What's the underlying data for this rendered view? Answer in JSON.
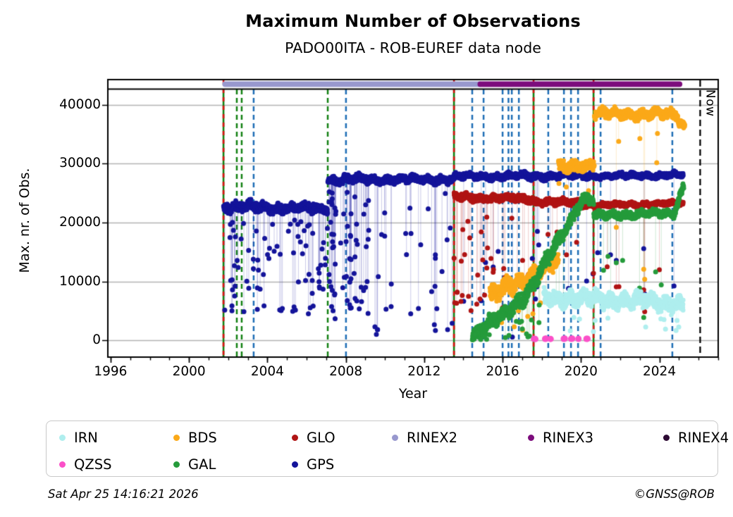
{
  "footer": {
    "timestamp": "Sat Apr 25 14:16:21 2026",
    "credit": "©GNSS@ROB"
  },
  "chart_data": {
    "type": "scatter",
    "title": "Maximum Number of Observations",
    "subtitle": "PADO00ITA - ROB-EUREF data node",
    "xlabel": "Year",
    "ylabel": "Max. nr. of Obs.",
    "axes": {
      "xlim": [
        1995.86,
        2027.0
      ],
      "ylim": [
        -2810,
        44270
      ],
      "xticks": [
        1996,
        2000,
        2004,
        2008,
        2012,
        2016,
        2020,
        2024
      ],
      "xminor_from": 1996,
      "xminor_to": 2027,
      "yticks": [
        0,
        10000,
        20000,
        30000,
        40000
      ],
      "grid": "horizontal",
      "grid_color": "#B3B3B3"
    },
    "now": {
      "x": 2026.08,
      "label": "Now"
    },
    "rinex_bars": [
      {
        "name": "RINEX2",
        "start": 2001.7,
        "end": 2014.95,
        "color": "#9898CE"
      },
      {
        "name": "RINEX3",
        "start": 2014.72,
        "end": 2025.17,
        "color": "#7C0C7C"
      }
    ],
    "event_lines": {
      "green_red_solid": [
        2001.76,
        2013.52,
        2017.58,
        2020.64
      ],
      "green_dashed": [
        2002.44,
        2002.69,
        2007.08
      ],
      "blue_dashed": [
        2003.3,
        2008.01,
        2014.45,
        2015.03,
        2016.0,
        2016.3,
        2016.47,
        2016.83,
        2018.33,
        2019.13,
        2019.49,
        2019.85,
        2021.0,
        2024.66
      ],
      "colors": {
        "green": "#128012",
        "red": "#D90F0F",
        "blue": "#1D6DB5",
        "now": "#000000"
      }
    },
    "legend": [
      {
        "label": "IRN",
        "color": "#AFEEEE"
      },
      {
        "label": "BDS",
        "color": "#FBA919"
      },
      {
        "label": "GLO",
        "color": "#B01414"
      },
      {
        "label": "RINEX2",
        "color": "#9898CE"
      },
      {
        "label": "RINEX3",
        "color": "#7C0C7C"
      },
      {
        "label": "RINEX4",
        "color": "#2D0A33"
      },
      {
        "label": "QZSS",
        "color": "#FB50C8"
      },
      {
        "label": "GAL",
        "color": "#259B3B"
      },
      {
        "label": "GPS",
        "color": "#14149A"
      }
    ],
    "series": [
      {
        "name": "GPS",
        "color": "#14149A",
        "segments": [
          {
            "x0": 2001.76,
            "x1": 2007.08,
            "v0": 22700,
            "v1": 22400,
            "spread": 900,
            "out_n": 80,
            "out_lo": 4500,
            "out_hi": 20500
          },
          {
            "x0": 2007.08,
            "x1": 2009.2,
            "v0": 27300,
            "v1": 27400,
            "spread": 800,
            "out_n": 65,
            "out_lo": 2000,
            "out_hi": 25800
          },
          {
            "x0": 2009.2,
            "x1": 2013.52,
            "v0": 27300,
            "v1": 27400,
            "spread": 700,
            "out_n": 32,
            "out_lo": 500,
            "out_hi": 25800
          },
          {
            "x0": 2013.52,
            "x1": 2020.65,
            "v0": 27800,
            "v1": 28000,
            "spread": 600,
            "out_n": 14,
            "out_lo": 6000,
            "out_hi": 21000
          },
          {
            "x0": 2020.65,
            "x1": 2025.22,
            "v0": 27900,
            "v1": 28100,
            "spread": 500,
            "out_n": 3,
            "out_lo": 7500,
            "out_hi": 16000
          }
        ],
        "extra": [
          [
            2021.8,
            13600,
            27950
          ],
          [
            2023.2,
            15600,
            27980
          ],
          [
            2023.25,
            7900,
            27980
          ],
          [
            2016.5,
            600,
            27900
          ]
        ]
      },
      {
        "name": "GLO",
        "color": "#B01414",
        "segments": [
          {
            "x0": 2013.52,
            "x1": 2017.58,
            "v0": 24400,
            "v1": 24000,
            "spread": 650,
            "out_n": 34,
            "out_lo": 5000,
            "out_hi": 21000
          },
          {
            "x0": 2017.58,
            "x1": 2020.65,
            "v0": 23600,
            "v1": 23200,
            "spread": 600,
            "out_n": 6,
            "out_lo": 9000,
            "out_hi": 19000
          },
          {
            "x0": 2020.65,
            "x1": 2025.22,
            "v0": 22900,
            "v1": 23300,
            "spread": 450,
            "out_n": 3,
            "out_lo": 4500,
            "out_hi": 15000
          }
        ],
        "extra": [
          [
            2021.8,
            9100,
            23050
          ],
          [
            2023.2,
            8600,
            23100
          ],
          [
            2023.25,
            4900,
            23100
          ]
        ]
      },
      {
        "name": "BDS",
        "color": "#FBA919",
        "segments": [
          {
            "x0": 2015.35,
            "x1": 2017.58,
            "v0": 7500,
            "v1": 11300,
            "spread": 1600,
            "floor": 300,
            "out_n": 8,
            "out_lo": 1500,
            "out_hi": 6000
          },
          {
            "x0": 2017.58,
            "x1": 2018.85,
            "v0": 11500,
            "v1": 13300,
            "spread": 1300,
            "out_n": 2,
            "out_lo": 6000,
            "out_hi": 9000
          },
          {
            "x0": 2018.85,
            "x1": 2020.68,
            "v0": 29400,
            "v1": 29900,
            "spread": 1000,
            "out_n": 3,
            "out_lo": 24500,
            "out_hi": 27000
          },
          {
            "x0": 2020.68,
            "x1": 2024.95,
            "v0": 38500,
            "v1": 38300,
            "spread": 900,
            "out_n": 4,
            "out_lo": 27000,
            "out_hi": 35500
          },
          {
            "x0": 2024.95,
            "x1": 2025.3,
            "v0": 37300,
            "v1": 36200,
            "spread": 800
          }
        ],
        "extra": [
          [
            2021.8,
            19200,
            38450
          ],
          [
            2023.2,
            12100,
            38400
          ],
          [
            2023.25,
            10400,
            38400
          ]
        ]
      },
      {
        "name": "GAL",
        "color": "#259B3B",
        "segments": [
          {
            "x0": 2014.45,
            "x1": 2016.0,
            "v0": 600,
            "v1": 4200,
            "spread": 1400,
            "floor": 60,
            "out_n": 6,
            "out_lo": 100,
            "out_hi": 1500
          },
          {
            "x0": 2016.0,
            "x1": 2017.58,
            "v0": 4200,
            "v1": 9200,
            "spread": 1300,
            "floor": 60,
            "out_n": 10,
            "out_lo": 300,
            "out_hi": 4000
          },
          {
            "x0": 2017.58,
            "x1": 2019.13,
            "v0": 9500,
            "v1": 18500,
            "spread": 1400,
            "out_n": 5,
            "out_lo": 3000,
            "out_hi": 8000
          },
          {
            "x0": 2019.13,
            "x1": 2020.1,
            "v0": 18500,
            "v1": 24300,
            "spread": 1100
          },
          {
            "x0": 2020.1,
            "x1": 2020.65,
            "v0": 24000,
            "v1": 23600,
            "spread": 900
          },
          {
            "x0": 2020.65,
            "x1": 2024.75,
            "v0": 21200,
            "v1": 21600,
            "spread": 650,
            "out_n": 7,
            "out_lo": 2500,
            "out_hi": 18000
          },
          {
            "x0": 2024.75,
            "x1": 2025.25,
            "v0": 22000,
            "v1": 26300,
            "spread": 800
          }
        ],
        "extra": [
          [
            2021.8,
            13200,
            21300
          ],
          [
            2023.2,
            3900,
            21350
          ]
        ]
      },
      {
        "name": "IRN",
        "color": "#AFEEEE",
        "segments": [
          {
            "x0": 2018.1,
            "x1": 2025.22,
            "v0": 7400,
            "v1": 6300,
            "spread": 1400,
            "out_n": 10,
            "out_lo": 1500,
            "out_hi": 4500
          }
        ],
        "extra": [
          [
            2023.3,
            2300,
            6700
          ],
          [
            2024.85,
            1700,
            6400
          ],
          [
            2024.9,
            3400,
            6400
          ]
        ]
      },
      {
        "name": "QZSS",
        "color": "#FB50C8",
        "points": [
          [
            2017.6,
            300
          ],
          [
            2017.67,
            260
          ],
          [
            2018.17,
            300
          ],
          [
            2018.22,
            330
          ],
          [
            2018.45,
            280
          ],
          [
            2019.12,
            300
          ],
          [
            2019.17,
            320
          ],
          [
            2019.5,
            300
          ],
          [
            2019.55,
            330
          ],
          [
            2019.87,
            290
          ],
          [
            2020.28,
            300
          ],
          [
            2020.33,
            310
          ]
        ]
      }
    ]
  }
}
